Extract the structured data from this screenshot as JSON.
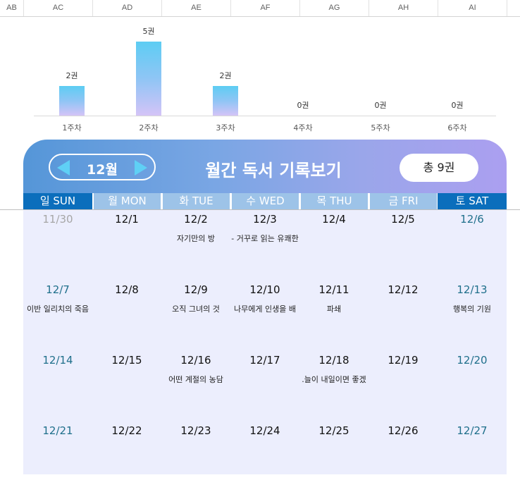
{
  "columns": [
    "AB",
    "AC",
    "AD",
    "AE",
    "AF",
    "AG",
    "AH",
    "AI"
  ],
  "chart_data": {
    "type": "bar",
    "categories": [
      "1주차",
      "2주차",
      "3주차",
      "4주차",
      "5주차",
      "6주차"
    ],
    "values": [
      2,
      5,
      2,
      0,
      0,
      0
    ],
    "data_labels": [
      "2권",
      "5권",
      "2권",
      "0권",
      "0권",
      "0권"
    ],
    "ylim": [
      0,
      5
    ],
    "colors": {
      "bar_top": "#5dcdf3",
      "bar_bottom": "#d4c4f7"
    }
  },
  "calendar": {
    "month_label": "12월",
    "title": "월간 독서 기록보기",
    "total_label": "총 9권",
    "weekdays": [
      "일 SUN",
      "월 MON",
      "화 TUE",
      "수 WED",
      "목 THU",
      "금 FRI",
      "토 SAT"
    ],
    "weeks": [
      [
        {
          "date": "11/30",
          "kind": "other",
          "book": ""
        },
        {
          "date": "12/1",
          "kind": "weekday",
          "book": ""
        },
        {
          "date": "12/2",
          "kind": "weekday",
          "book": "자기만의 방"
        },
        {
          "date": "12/3",
          "kind": "weekday",
          "book": "- 거꾸로 읽는 유쾌한"
        },
        {
          "date": "12/4",
          "kind": "weekday",
          "book": ""
        },
        {
          "date": "12/5",
          "kind": "weekday",
          "book": ""
        },
        {
          "date": "12/6",
          "kind": "weekend",
          "book": ""
        }
      ],
      [
        {
          "date": "12/7",
          "kind": "weekend",
          "book": "이반 일리치의 죽음"
        },
        {
          "date": "12/8",
          "kind": "weekday",
          "book": ""
        },
        {
          "date": "12/9",
          "kind": "weekday",
          "book": "오직 그녀의 것"
        },
        {
          "date": "12/10",
          "kind": "weekday",
          "book": "나무에게 인생을 배"
        },
        {
          "date": "12/11",
          "kind": "weekday",
          "book": "파쇄"
        },
        {
          "date": "12/12",
          "kind": "weekday",
          "book": ""
        },
        {
          "date": "12/13",
          "kind": "weekend",
          "book": "행복의 기원"
        }
      ],
      [
        {
          "date": "12/14",
          "kind": "weekend",
          "book": ""
        },
        {
          "date": "12/15",
          "kind": "weekday",
          "book": ""
        },
        {
          "date": "12/16",
          "kind": "weekday",
          "book": "어떤 계절의 농담"
        },
        {
          "date": "12/17",
          "kind": "weekday",
          "book": ""
        },
        {
          "date": "12/18",
          "kind": "weekday",
          "book": ".늘이 내일이면 좋겠"
        },
        {
          "date": "12/19",
          "kind": "weekday",
          "book": ""
        },
        {
          "date": "12/20",
          "kind": "weekend",
          "book": ""
        }
      ],
      [
        {
          "date": "12/21",
          "kind": "weekend",
          "book": ""
        },
        {
          "date": "12/22",
          "kind": "weekday",
          "book": ""
        },
        {
          "date": "12/23",
          "kind": "weekday",
          "book": ""
        },
        {
          "date": "12/24",
          "kind": "weekday",
          "book": ""
        },
        {
          "date": "12/25",
          "kind": "weekday",
          "book": ""
        },
        {
          "date": "12/26",
          "kind": "weekday",
          "book": ""
        },
        {
          "date": "12/27",
          "kind": "weekend",
          "book": ""
        }
      ]
    ],
    "colors": {
      "weekend_header": "#0b6ebc",
      "weekday_header": "#9dc3e8",
      "weekend_date": "#1f6f8b",
      "cell_bg": "#eceefd"
    }
  }
}
